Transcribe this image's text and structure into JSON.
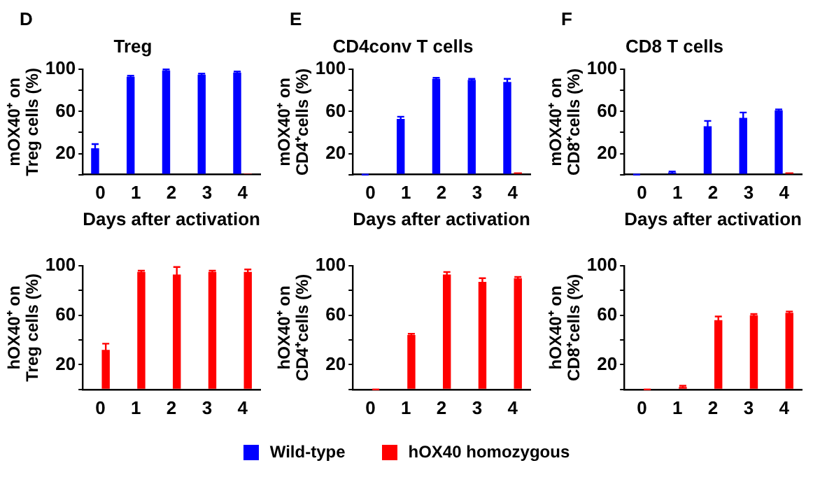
{
  "chart_data": [
    {
      "type": "bar",
      "title": "Treg",
      "annotations": [
        "D"
      ],
      "xlabel": "Days after activation",
      "ylabel": "mOX40⁺ on\nTreg cells (%)",
      "categories": [
        "0",
        "1",
        "2",
        "3",
        "4"
      ],
      "ylim": [
        0,
        100
      ],
      "yticks": [
        {
          "value": 0,
          "label": null
        },
        20,
        {
          "value": 40,
          "label": null
        },
        60,
        {
          "value": 80,
          "label": null
        },
        100
      ],
      "grid": false,
      "legend": "bottom",
      "series": [
        {
          "name": "Wild-type",
          "color": "#0000ff",
          "values": [
            25,
            93,
            99,
            95,
            97
          ],
          "errors": [
            4,
            1,
            1,
            1,
            1
          ]
        },
        {
          "name": "hOX40 homozygous",
          "color": "#ff0000",
          "values": [
            0,
            0,
            0,
            0,
            1
          ]
        }
      ]
    },
    {
      "type": "bar",
      "title": "CD4conv T cells",
      "annotations": [
        "E"
      ],
      "xlabel": "Days after activation",
      "ylabel": "mOX40⁺ on\nCD4⁺cells (%)",
      "categories": [
        "0",
        "1",
        "2",
        "3",
        "4"
      ],
      "ylim": [
        0,
        100
      ],
      "yticks": [
        {
          "value": 0,
          "label": null
        },
        20,
        {
          "value": 40,
          "label": null
        },
        60,
        {
          "value": 80,
          "label": null
        },
        100
      ],
      "grid": false,
      "legend": "bottom",
      "series": [
        {
          "name": "Wild-type",
          "color": "#0000ff",
          "values": [
            0,
            53,
            91,
            90,
            88
          ],
          "errors": [
            0,
            2,
            1,
            1,
            3
          ]
        },
        {
          "name": "hOX40 homozygous",
          "color": "#ff0000",
          "values": [
            0,
            0,
            0,
            0,
            2
          ]
        }
      ]
    },
    {
      "type": "bar",
      "title": "CD8 T cells",
      "annotations": [
        "F"
      ],
      "xlabel": "Days after activation",
      "ylabel": "mOX40⁺ on\nCD8⁺cells (%)",
      "categories": [
        "0",
        "1",
        "2",
        "3",
        "4"
      ],
      "ylim": [
        0,
        100
      ],
      "yticks": [
        {
          "value": 0,
          "label": null
        },
        20,
        {
          "value": 40,
          "label": null
        },
        60,
        {
          "value": 80,
          "label": null
        },
        100
      ],
      "grid": false,
      "legend": "bottom",
      "series": [
        {
          "name": "Wild-type",
          "color": "#0000ff",
          "values": [
            0,
            2,
            46,
            54,
            61
          ],
          "errors": [
            0,
            1,
            5,
            5,
            1
          ]
        },
        {
          "name": "hOX40 homozygous",
          "color": "#ff0000",
          "values": [
            0,
            0,
            0,
            0,
            2
          ]
        }
      ]
    },
    {
      "type": "bar",
      "ylabel": "hOX40⁺ on\nTreg cells (%)",
      "categories": [
        "0",
        "1",
        "2",
        "3",
        "4"
      ],
      "ylim": [
        0,
        100
      ],
      "yticks": [
        {
          "value": 0,
          "label": null
        },
        20,
        {
          "value": 40,
          "label": null
        },
        60,
        {
          "value": 80,
          "label": null
        },
        100
      ],
      "grid": false,
      "legend": "bottom",
      "series": [
        {
          "name": "Wild-type",
          "color": "#0000ff",
          "values": [
            0,
            0,
            0,
            0,
            0
          ]
        },
        {
          "name": "hOX40 homozygous",
          "color": "#ff0000",
          "values": [
            32,
            95,
            93,
            95,
            95
          ],
          "errors": [
            5,
            1,
            6,
            1,
            2
          ]
        }
      ]
    },
    {
      "type": "bar",
      "ylabel": "hOX40⁺ on\nCD4⁺cells (%)",
      "categories": [
        "0",
        "1",
        "2",
        "3",
        "4"
      ],
      "ylim": [
        0,
        100
      ],
      "yticks": [
        {
          "value": 0,
          "label": null
        },
        20,
        {
          "value": 40,
          "label": null
        },
        60,
        {
          "value": 80,
          "label": null
        },
        100
      ],
      "grid": false,
      "legend": "bottom",
      "series": [
        {
          "name": "Wild-type",
          "color": "#0000ff",
          "values": [
            0,
            0,
            0,
            0,
            0
          ]
        },
        {
          "name": "hOX40 homozygous",
          "color": "#ff0000",
          "values": [
            0,
            44,
            93,
            87,
            90
          ],
          "errors": [
            0,
            1,
            2,
            3,
            1
          ]
        }
      ]
    },
    {
      "type": "bar",
      "ylabel": "hOX40⁺ on\nCD8⁺cells (%)",
      "categories": [
        "0",
        "1",
        "2",
        "3",
        "4"
      ],
      "ylim": [
        0,
        100
      ],
      "yticks": [
        {
          "value": 0,
          "label": null
        },
        20,
        {
          "value": 40,
          "label": null
        },
        60,
        {
          "value": 80,
          "label": null
        },
        100
      ],
      "grid": false,
      "legend": "bottom",
      "series": [
        {
          "name": "Wild-type",
          "color": "#0000ff",
          "values": [
            0,
            0,
            0,
            0,
            0
          ]
        },
        {
          "name": "hOX40 homozygous",
          "color": "#ff0000",
          "values": [
            0,
            2,
            56,
            60,
            62
          ],
          "errors": [
            0,
            1,
            3,
            1,
            1
          ]
        }
      ]
    }
  ]
}
